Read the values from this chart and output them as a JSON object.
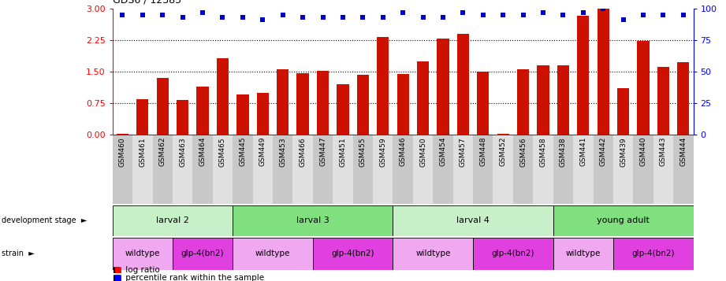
{
  "title": "GDS6 / 12385",
  "samples": [
    "GSM460",
    "GSM461",
    "GSM462",
    "GSM463",
    "GSM464",
    "GSM465",
    "GSM445",
    "GSM449",
    "GSM453",
    "GSM466",
    "GSM447",
    "GSM451",
    "GSM455",
    "GSM459",
    "GSM446",
    "GSM450",
    "GSM454",
    "GSM457",
    "GSM448",
    "GSM452",
    "GSM456",
    "GSM458",
    "GSM438",
    "GSM441",
    "GSM442",
    "GSM439",
    "GSM440",
    "GSM443",
    "GSM444"
  ],
  "log_ratio": [
    0.02,
    0.85,
    1.35,
    0.82,
    1.15,
    1.82,
    0.95,
    1.0,
    1.56,
    1.46,
    1.52,
    1.2,
    1.42,
    2.32,
    1.45,
    1.75,
    2.28,
    2.4,
    1.5,
    0.02,
    1.55,
    1.65,
    1.65,
    2.82,
    3.0,
    1.1,
    2.22,
    1.62,
    1.72
  ],
  "percentile_pct": [
    95,
    95,
    95,
    93,
    97,
    93,
    93,
    91,
    95,
    93,
    93,
    93,
    93,
    93,
    97,
    93,
    93,
    97,
    95,
    95,
    95,
    97,
    95,
    97,
    100,
    91,
    95,
    95,
    95
  ],
  "dev_stages": [
    {
      "label": "larval 2",
      "start": 0,
      "end": 6,
      "color": "#c8f0c8"
    },
    {
      "label": "larval 3",
      "start": 6,
      "end": 14,
      "color": "#80e080"
    },
    {
      "label": "larval 4",
      "start": 14,
      "end": 22,
      "color": "#c8f0c8"
    },
    {
      "label": "young adult",
      "start": 22,
      "end": 29,
      "color": "#80e080"
    }
  ],
  "strains": [
    {
      "label": "wildtype",
      "start": 0,
      "end": 3,
      "color": "#f0a8f0"
    },
    {
      "label": "glp-4(bn2)",
      "start": 3,
      "end": 6,
      "color": "#e040e0"
    },
    {
      "label": "wildtype",
      "start": 6,
      "end": 10,
      "color": "#f0a8f0"
    },
    {
      "label": "glp-4(bn2)",
      "start": 10,
      "end": 14,
      "color": "#e040e0"
    },
    {
      "label": "wildtype",
      "start": 14,
      "end": 18,
      "color": "#f0a8f0"
    },
    {
      "label": "glp-4(bn2)",
      "start": 18,
      "end": 22,
      "color": "#e040e0"
    },
    {
      "label": "wildtype",
      "start": 22,
      "end": 25,
      "color": "#f0a8f0"
    },
    {
      "label": "glp-4(bn2)",
      "start": 25,
      "end": 29,
      "color": "#e040e0"
    }
  ],
  "bar_color": "#cc1100",
  "dot_color": "#0000cc",
  "yticks_left": [
    0,
    0.75,
    1.5,
    2.25,
    3.0
  ],
  "yticks_right": [
    0,
    25,
    50,
    75,
    100
  ],
  "dotted_lines": [
    0.75,
    1.5,
    2.25
  ],
  "tick_bg_even": "#c8c8c8",
  "tick_bg_odd": "#e0e0e0"
}
